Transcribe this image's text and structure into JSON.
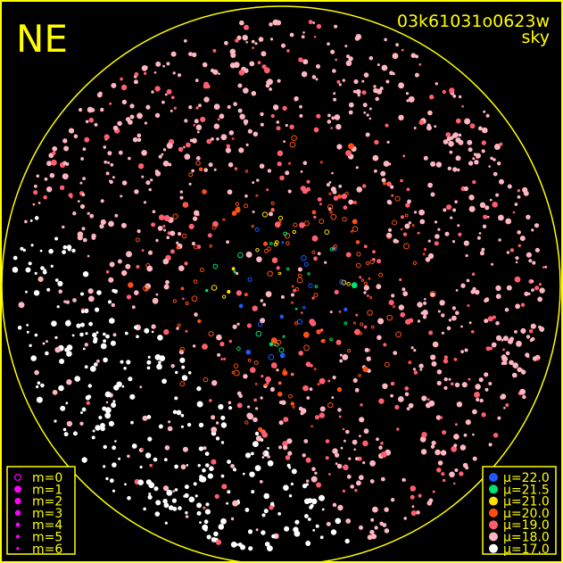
{
  "direction_label": "NE",
  "frame_id": "03k61031o0623w",
  "frame_type": "sky",
  "colors": {
    "frame": "#ffff00",
    "text": "#ffff00",
    "background": "#000000",
    "magnitude_marker": "#ff00ff"
  },
  "magnitude_legend": [
    {
      "label": "m=0",
      "radius": 4.5,
      "hollow": true
    },
    {
      "label": "m=1",
      "radius": 4.5,
      "hollow": false
    },
    {
      "label": "m=2",
      "radius": 4,
      "hollow": false
    },
    {
      "label": "m=3",
      "radius": 3.5,
      "hollow": false
    },
    {
      "label": "m=4",
      "radius": 2.5,
      "hollow": false
    },
    {
      "label": "m=5",
      "radius": 2,
      "hollow": false
    },
    {
      "label": "m=6",
      "radius": 1.5,
      "hollow": false
    }
  ],
  "brightness_legend": [
    {
      "label": "μ=22.0",
      "color": "#1e5aff"
    },
    {
      "label": "μ=21.5",
      "color": "#00e070"
    },
    {
      "label": "μ=21.0",
      "color": "#ffe000"
    },
    {
      "label": "μ=20.0",
      "color": "#ff5010"
    },
    {
      "label": "μ=19.0",
      "color": "#ff5e6e"
    },
    {
      "label": "μ=18.0",
      "color": "#ffb6c1"
    },
    {
      "label": "μ=17.0",
      "color": "#ffffff"
    }
  ]
}
